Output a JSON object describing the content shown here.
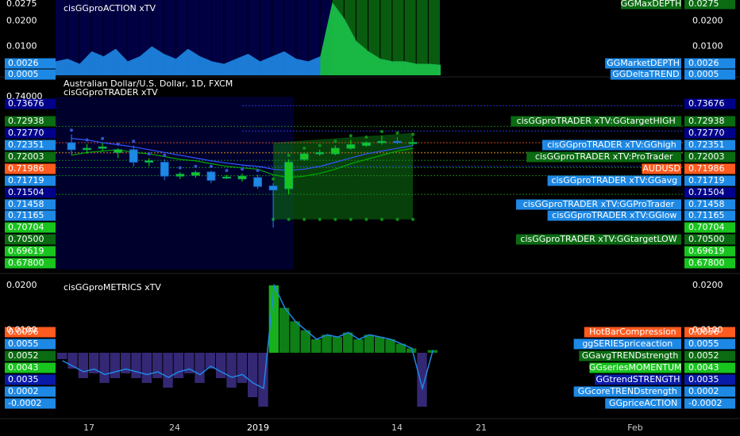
{
  "colors": {
    "background": "#000000",
    "green_bright": "#19c41f",
    "green_dark": "#0b6b12",
    "green_mid": "#0f8c18",
    "blue_bright": "#1e88e5",
    "blue_dark": "#0a1aa8",
    "navy": "#00008b",
    "orange": "#ff5a1f",
    "lime": "#00e600",
    "line_blue": "#3355ff",
    "line_green": "#00aa00"
  },
  "chart_data": [
    {
      "type": "area",
      "title": "cisGGproACTION xTV",
      "ylim": [
        0,
        0.0275
      ],
      "left_ticks": [
        "0.0275",
        "0.0200",
        "0.0100"
      ],
      "right_ticks": [
        "0.0275",
        "0.0200",
        "0.0100"
      ],
      "left_tags": [
        {
          "text": "0.0026",
          "color": "#1e88e5"
        },
        {
          "text": "0.0005",
          "color": "#1e88e5"
        }
      ],
      "right_tags": [
        {
          "text": "GGMaxDEPTH",
          "value": "0.0275",
          "color": "#0b6b12"
        },
        {
          "text": "GGMarketDEPTH",
          "value": "0.0026",
          "color": "#1e88e5"
        },
        {
          "text": "GGDeltaTREND",
          "value": "0.0005",
          "color": "#1e88e5"
        }
      ],
      "series": [
        {
          "values": [
            0.004,
            0.005,
            0.003,
            0.008,
            0.006,
            0.009,
            0.004,
            0.006,
            0.01,
            0.007,
            0.005,
            0.009,
            0.006,
            0.004,
            0.003,
            0.005,
            0.007,
            0.004,
            0.006,
            0.008,
            0.005,
            0.004,
            0.006,
            0.0275,
            0.021,
            0.012,
            0.008,
            0.005,
            0.004,
            0.004,
            0.003,
            0.003,
            0.0026
          ]
        },
        {
          "values": [
            0,
            0,
            0,
            0,
            0,
            0,
            0,
            0,
            0,
            0,
            0,
            0,
            0,
            0,
            0,
            0,
            0,
            0,
            0,
            0,
            0,
            0,
            0,
            0.0275,
            0.0275,
            0.0275,
            0.0275,
            0.0275,
            0.0275,
            0.0275,
            0.0275,
            0.0275,
            0.0275
          ]
        }
      ]
    },
    {
      "type": "candlestick",
      "title": "Australian Dollar/U.S. Dollar, 1D, FXCM",
      "subtitle": "cisGGproTRADER xTV",
      "ylim": [
        0.678,
        0.74
      ],
      "top_tick": "0.74000",
      "candles": [
        {
          "o": 0.7235,
          "h": 0.7265,
          "l": 0.719,
          "c": 0.721
        },
        {
          "o": 0.721,
          "h": 0.723,
          "l": 0.7195,
          "c": 0.7215
        },
        {
          "o": 0.7215,
          "h": 0.7235,
          "l": 0.7205,
          "c": 0.722
        },
        {
          "o": 0.72,
          "h": 0.7215,
          "l": 0.718,
          "c": 0.721
        },
        {
          "o": 0.721,
          "h": 0.7225,
          "l": 0.715,
          "c": 0.7165
        },
        {
          "o": 0.7165,
          "h": 0.718,
          "l": 0.715,
          "c": 0.717
        },
        {
          "o": 0.7165,
          "h": 0.7175,
          "l": 0.71,
          "c": 0.7115
        },
        {
          "o": 0.7115,
          "h": 0.713,
          "l": 0.7105,
          "c": 0.7122
        },
        {
          "o": 0.7118,
          "h": 0.7135,
          "l": 0.711,
          "c": 0.7128
        },
        {
          "o": 0.713,
          "h": 0.7135,
          "l": 0.709,
          "c": 0.71
        },
        {
          "o": 0.711,
          "h": 0.712,
          "l": 0.7105,
          "c": 0.7112
        },
        {
          "o": 0.7105,
          "h": 0.7125,
          "l": 0.7095,
          "c": 0.7115
        },
        {
          "o": 0.711,
          "h": 0.712,
          "l": 0.707,
          "c": 0.7078
        },
        {
          "o": 0.708,
          "h": 0.709,
          "l": 0.693,
          "c": 0.7065
        },
        {
          "o": 0.707,
          "h": 0.7175,
          "l": 0.705,
          "c": 0.7165
        },
        {
          "o": 0.7175,
          "h": 0.72,
          "l": 0.717,
          "c": 0.7195
        },
        {
          "o": 0.7195,
          "h": 0.721,
          "l": 0.7188,
          "c": 0.72
        },
        {
          "o": 0.7195,
          "h": 0.7225,
          "l": 0.719,
          "c": 0.7215
        },
        {
          "o": 0.7215,
          "h": 0.7245,
          "l": 0.721,
          "c": 0.7228
        },
        {
          "o": 0.7225,
          "h": 0.724,
          "l": 0.722,
          "c": 0.7235
        },
        {
          "o": 0.7235,
          "h": 0.726,
          "l": 0.7228,
          "c": 0.724
        },
        {
          "o": 0.724,
          "h": 0.7255,
          "l": 0.723,
          "c": 0.7235
        },
        {
          "o": 0.7235,
          "h": 0.725,
          "l": 0.7225,
          "c": 0.7236
        }
      ],
      "left_tags": [
        {
          "text": "0.73676",
          "color": "#00008b"
        },
        {
          "text": "0.72938",
          "color": "#0b6b12"
        },
        {
          "text": "0.72770",
          "color": "#00008b"
        },
        {
          "text": "0.72351",
          "color": "#1e88e5"
        },
        {
          "text": "0.72003",
          "color": "#0b6b12"
        },
        {
          "text": "0.71986",
          "color": "#ff5a1f"
        },
        {
          "text": "0.71719",
          "color": "#1e88e5"
        },
        {
          "text": "0.71504",
          "color": "#00008b"
        },
        {
          "text": "0.71458",
          "color": "#1e88e5"
        },
        {
          "text": "0.71165",
          "color": "#1e88e5"
        },
        {
          "text": "0.70704",
          "color": "#19c41f"
        },
        {
          "text": "0.70500",
          "color": "#0b6b12"
        },
        {
          "text": "0.69619",
          "color": "#19c41f"
        },
        {
          "text": "0.67800",
          "color": "#19c41f"
        }
      ],
      "right_tags": [
        {
          "text": "",
          "value": "0.73676",
          "color": "#00008b"
        },
        {
          "text": "cisGGproTRADER xTV:GGtargetHIGH",
          "value": "0.72938",
          "color": "#0b6b12"
        },
        {
          "text": "",
          "value": "0.72770",
          "color": "#00008b"
        },
        {
          "text": "cisGGproTRADER xTV:GGhigh",
          "value": "0.72351",
          "color": "#1e88e5"
        },
        {
          "text": "cisGGproTRADER xTV:ProTrader",
          "value": "0.72003",
          "color": "#0b6b12"
        },
        {
          "text": "AUDUSD",
          "value": "0.71986",
          "color": "#ff5a1f"
        },
        {
          "text": "cisGGproTRADER xTV:GGavg",
          "value": "0.71719",
          "color": "#1e88e5"
        },
        {
          "text": "",
          "value": "0.71504",
          "color": "#00008b"
        },
        {
          "text": "cisGGproTRADER xTV:GGProTrader",
          "value": "0.71458",
          "color": "#1e88e5"
        },
        {
          "text": "cisGGproTRADER xTV:GGlow",
          "value": "0.71165",
          "color": "#1e88e5"
        },
        {
          "text": "",
          "value": "0.70704",
          "color": "#19c41f"
        },
        {
          "text": "cisGGproTRADER xTV:GGtargetLOW",
          "value": "0.70500",
          "color": "#0b6b12"
        },
        {
          "text": "",
          "value": "0.69619",
          "color": "#19c41f"
        },
        {
          "text": "",
          "value": "0.67800",
          "color": "#19c41f"
        }
      ]
    },
    {
      "type": "bar",
      "title": "cisGGproMETRICS xTV",
      "ylim": [
        -0.002,
        0.02
      ],
      "left_ticks": [
        "0.0200",
        "0.0100"
      ],
      "right_ticks": [
        "0.0200",
        "0.0100"
      ],
      "values": [
        0.0,
        -0.001,
        -0.002,
        -0.0015,
        -0.0025,
        -0.002,
        -0.0015,
        -0.002,
        -0.0025,
        -0.002,
        -0.003,
        -0.002,
        -0.0015,
        -0.0025,
        -0.001,
        -0.002,
        -0.003,
        -0.0025,
        -0.004,
        -0.005,
        0.02,
        0.015,
        0.012,
        0.01,
        0.008,
        0.009,
        0.0085,
        0.0095,
        0.008,
        0.009,
        0.0085,
        0.008,
        0.007,
        0.006,
        0.005,
        0.0056
      ],
      "left_tags": [
        {
          "text": "0.0056",
          "color": "#ff5a1f"
        },
        {
          "text": "0.0055",
          "color": "#1e88e5"
        },
        {
          "text": "0.0052",
          "color": "#0b6b12"
        },
        {
          "text": "0.0043",
          "color": "#19c41f"
        },
        {
          "text": "0.0035",
          "color": "#0a1aa8"
        },
        {
          "text": "0.0002",
          "color": "#1e88e5"
        },
        {
          "text": "-0.0002",
          "color": "#1e88e5"
        }
      ],
      "right_tags": [
        {
          "text": "HotBarCompression",
          "value": "0.0056",
          "color": "#ff5a1f"
        },
        {
          "text": "ggSERIESpriceaction",
          "value": "0.0055",
          "color": "#1e88e5"
        },
        {
          "text": "GGavgTRENDstrength",
          "value": "0.0052",
          "color": "#0b6b12"
        },
        {
          "text": "GGseriesMOMENTUM",
          "value": "0.0043",
          "color": "#19c41f"
        },
        {
          "text": "GGtrendSTRENGTH",
          "value": "0.0035",
          "color": "#0a1aa8"
        },
        {
          "text": "GGcoreTRENDstrength",
          "value": "0.0002",
          "color": "#1e88e5"
        },
        {
          "text": "GGpriceACTION",
          "value": "-0.0002",
          "color": "#1e88e5"
        }
      ]
    }
  ],
  "x_axis": {
    "ticks": [
      "17",
      "24",
      "2019",
      "14",
      "21",
      "Feb"
    ]
  }
}
